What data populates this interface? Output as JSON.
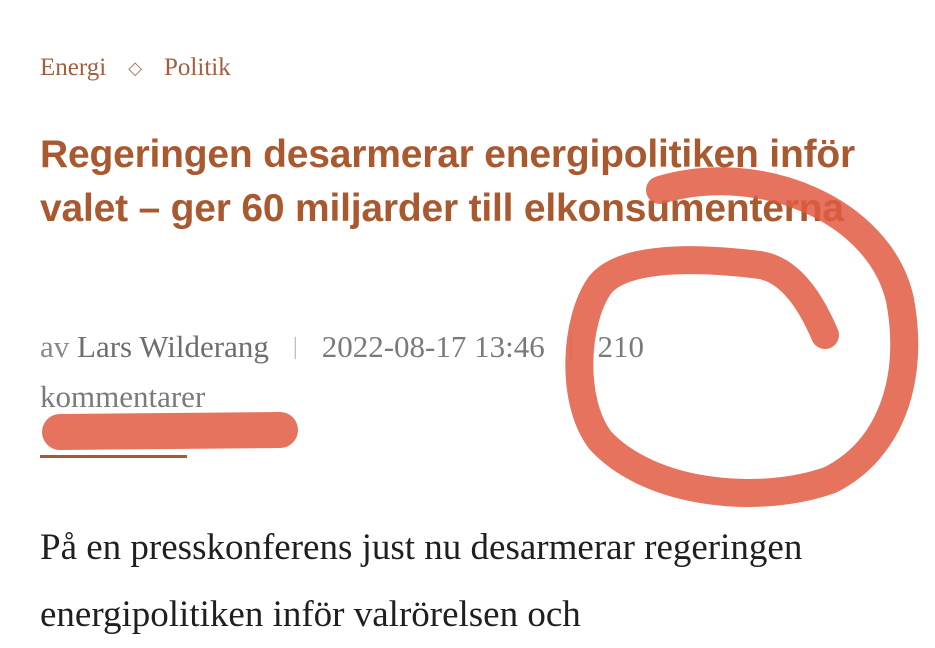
{
  "categories": [
    {
      "label": "Energi"
    },
    {
      "label": "Politik"
    }
  ],
  "category_separator": "◇",
  "article": {
    "title": "Regeringen desarmerar energipolitiken inför valet – ger 60 miljarder till elkonsumenterna",
    "by_prefix": "av",
    "author": "Lars Wilderang",
    "timestamp": "2022-08-17 13:46",
    "comments": "210 kommentarer",
    "body": "På en presskonferens just nu desarmerar regeringen energipolitiken inför valrörelsen och"
  },
  "annotation_color": "#e05a42"
}
